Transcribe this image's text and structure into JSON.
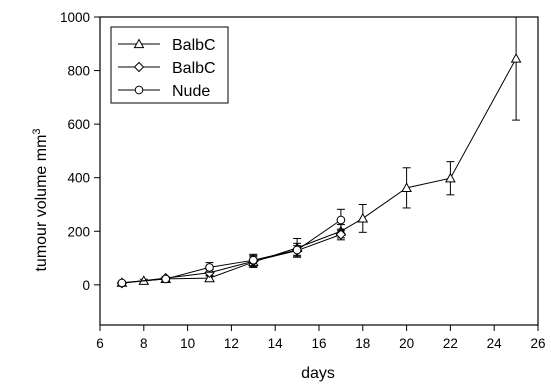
{
  "chart_data": {
    "type": "line",
    "xlabel": "days",
    "ylabel": "tumour volume mm",
    "ylabel_superscript": "3",
    "xlim": [
      6,
      26
    ],
    "ylim": [
      -150,
      1000
    ],
    "xticks": [
      6,
      8,
      10,
      12,
      14,
      16,
      18,
      20,
      22,
      24,
      26
    ],
    "yticks": [
      0,
      200,
      400,
      600,
      800,
      1000
    ],
    "grid": false,
    "legend_position": "top-left",
    "series": [
      {
        "name": "BalbC",
        "marker": "triangle",
        "x": [
          7,
          8,
          9,
          11,
          13,
          15,
          17,
          18,
          20,
          22,
          25
        ],
        "y": [
          8,
          15,
          22,
          25,
          85,
          138,
          200,
          248,
          362,
          398,
          845
        ],
        "err": [
          5,
          6,
          6,
          10,
          20,
          35,
          25,
          52,
          75,
          62,
          230
        ]
      },
      {
        "name": "BalbC",
        "marker": "diamond",
        "x": [
          7,
          9,
          11,
          13,
          15,
          17
        ],
        "y": [
          6,
          25,
          45,
          88,
          128,
          188
        ],
        "err": [
          4,
          5,
          12,
          22,
          18,
          20
        ]
      },
      {
        "name": "Nude",
        "marker": "circle",
        "x": [
          7,
          9,
          11,
          13,
          15,
          17
        ],
        "y": [
          7,
          22,
          65,
          92,
          130,
          242
        ],
        "err": [
          4,
          6,
          18,
          22,
          25,
          40
        ]
      }
    ]
  }
}
